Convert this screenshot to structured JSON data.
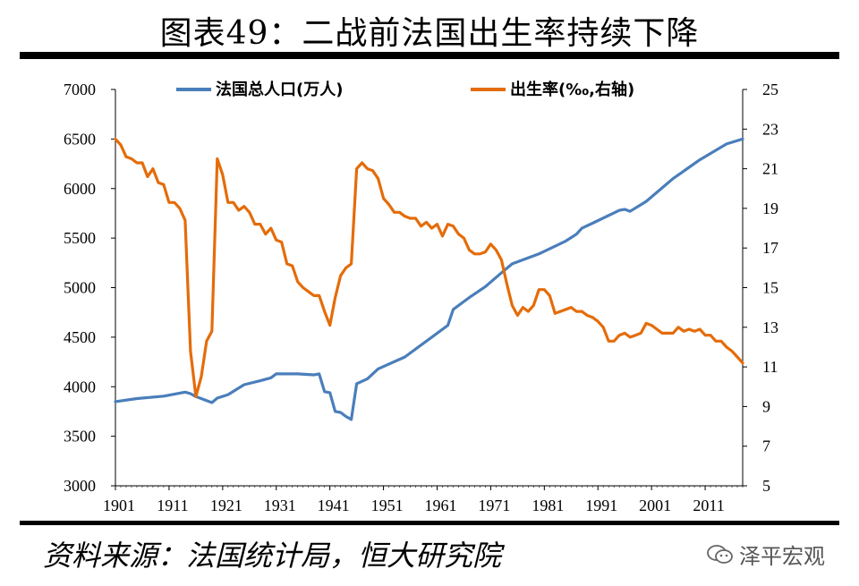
{
  "title": "图表49：二战前法国出生率持续下降",
  "source": "资料来源：法国统计局，恒大研究院",
  "brand": "泽平宏观",
  "chart_data": {
    "type": "line",
    "title": "图表49：二战前法国出生率持续下降",
    "x_ticks": [
      "1901",
      "1911",
      "1921",
      "1931",
      "1941",
      "1951",
      "1961",
      "1971",
      "1981",
      "1991",
      "2001",
      "2011"
    ],
    "x_range": [
      1901,
      2018
    ],
    "y_left": {
      "range": [
        3000,
        7000
      ],
      "ticks": [
        "3000",
        "3500",
        "4000",
        "4500",
        "5000",
        "5500",
        "6000",
        "6500",
        "7000"
      ],
      "label": "法国总人口(万人)"
    },
    "y_right": {
      "range": [
        5,
        25
      ],
      "ticks": [
        "5",
        "7",
        "9",
        "11",
        "13",
        "15",
        "17",
        "19",
        "21",
        "23",
        "25"
      ],
      "label": "出生率(‰,右轴)"
    },
    "series": [
      {
        "name": "法国总人口(万人)",
        "axis": "left",
        "color": "#4a7ebb",
        "points": [
          [
            1901,
            3850
          ],
          [
            1905,
            3880
          ],
          [
            1910,
            3905
          ],
          [
            1914,
            3945
          ],
          [
            1915,
            3930
          ],
          [
            1916,
            3900
          ],
          [
            1917,
            3880
          ],
          [
            1918,
            3860
          ],
          [
            1919,
            3840
          ],
          [
            1920,
            3885
          ],
          [
            1922,
            3920
          ],
          [
            1925,
            4020
          ],
          [
            1928,
            4060
          ],
          [
            1930,
            4090
          ],
          [
            1931,
            4130
          ],
          [
            1935,
            4130
          ],
          [
            1938,
            4120
          ],
          [
            1939,
            4130
          ],
          [
            1940,
            3950
          ],
          [
            1941,
            3940
          ],
          [
            1942,
            3750
          ],
          [
            1943,
            3740
          ],
          [
            1944,
            3700
          ],
          [
            1945,
            3670
          ],
          [
            1946,
            4030
          ],
          [
            1948,
            4080
          ],
          [
            1950,
            4180
          ],
          [
            1955,
            4300
          ],
          [
            1960,
            4500
          ],
          [
            1963,
            4620
          ],
          [
            1964,
            4780
          ],
          [
            1967,
            4900
          ],
          [
            1970,
            5010
          ],
          [
            1973,
            5150
          ],
          [
            1975,
            5240
          ],
          [
            1980,
            5340
          ],
          [
            1985,
            5470
          ],
          [
            1987,
            5540
          ],
          [
            1988,
            5600
          ],
          [
            1990,
            5650
          ],
          [
            1995,
            5780
          ],
          [
            1996,
            5790
          ],
          [
            1997,
            5770
          ],
          [
            2000,
            5870
          ],
          [
            2005,
            6100
          ],
          [
            2010,
            6290
          ],
          [
            2015,
            6450
          ],
          [
            2018,
            6500
          ]
        ]
      },
      {
        "name": "出生率(‰,右轴)",
        "axis": "right",
        "color": "#e46c0a",
        "points": [
          [
            1901,
            22.5
          ],
          [
            1902,
            22.2
          ],
          [
            1903,
            21.6
          ],
          [
            1904,
            21.5
          ],
          [
            1905,
            21.3
          ],
          [
            1906,
            21.3
          ],
          [
            1907,
            20.6
          ],
          [
            1908,
            21.0
          ],
          [
            1909,
            20.3
          ],
          [
            1910,
            20.2
          ],
          [
            1911,
            19.3
          ],
          [
            1912,
            19.3
          ],
          [
            1913,
            19.0
          ],
          [
            1914,
            18.4
          ],
          [
            1915,
            11.8
          ],
          [
            1916,
            9.5
          ],
          [
            1917,
            10.5
          ],
          [
            1918,
            12.3
          ],
          [
            1919,
            12.8
          ],
          [
            1920,
            21.5
          ],
          [
            1921,
            20.7
          ],
          [
            1922,
            19.3
          ],
          [
            1923,
            19.3
          ],
          [
            1924,
            18.9
          ],
          [
            1925,
            19.1
          ],
          [
            1926,
            18.8
          ],
          [
            1927,
            18.2
          ],
          [
            1928,
            18.2
          ],
          [
            1929,
            17.7
          ],
          [
            1930,
            18.0
          ],
          [
            1931,
            17.4
          ],
          [
            1932,
            17.3
          ],
          [
            1933,
            16.2
          ],
          [
            1934,
            16.1
          ],
          [
            1935,
            15.3
          ],
          [
            1936,
            15.0
          ],
          [
            1937,
            14.8
          ],
          [
            1938,
            14.6
          ],
          [
            1939,
            14.6
          ],
          [
            1940,
            13.8
          ],
          [
            1941,
            13.1
          ],
          [
            1942,
            14.5
          ],
          [
            1943,
            15.6
          ],
          [
            1944,
            16.0
          ],
          [
            1945,
            16.2
          ],
          [
            1946,
            21.0
          ],
          [
            1947,
            21.3
          ],
          [
            1948,
            21.0
          ],
          [
            1949,
            20.9
          ],
          [
            1950,
            20.5
          ],
          [
            1951,
            19.5
          ],
          [
            1952,
            19.2
          ],
          [
            1953,
            18.8
          ],
          [
            1954,
            18.8
          ],
          [
            1955,
            18.6
          ],
          [
            1956,
            18.5
          ],
          [
            1957,
            18.5
          ],
          [
            1958,
            18.1
          ],
          [
            1959,
            18.3
          ],
          [
            1960,
            18.0
          ],
          [
            1961,
            18.2
          ],
          [
            1962,
            17.6
          ],
          [
            1963,
            18.2
          ],
          [
            1964,
            18.1
          ],
          [
            1965,
            17.7
          ],
          [
            1966,
            17.5
          ],
          [
            1967,
            16.9
          ],
          [
            1968,
            16.7
          ],
          [
            1969,
            16.7
          ],
          [
            1970,
            16.8
          ],
          [
            1971,
            17.2
          ],
          [
            1972,
            16.9
          ],
          [
            1973,
            16.4
          ],
          [
            1974,
            15.2
          ],
          [
            1975,
            14.1
          ],
          [
            1976,
            13.6
          ],
          [
            1977,
            14.0
          ],
          [
            1978,
            13.8
          ],
          [
            1979,
            14.1
          ],
          [
            1980,
            14.9
          ],
          [
            1981,
            14.9
          ],
          [
            1982,
            14.6
          ],
          [
            1983,
            13.7
          ],
          [
            1984,
            13.8
          ],
          [
            1985,
            13.9
          ],
          [
            1986,
            14.0
          ],
          [
            1987,
            13.8
          ],
          [
            1988,
            13.8
          ],
          [
            1989,
            13.6
          ],
          [
            1990,
            13.5
          ],
          [
            1991,
            13.3
          ],
          [
            1992,
            13.0
          ],
          [
            1993,
            12.3
          ],
          [
            1994,
            12.3
          ],
          [
            1995,
            12.6
          ],
          [
            1996,
            12.7
          ],
          [
            1997,
            12.5
          ],
          [
            1998,
            12.6
          ],
          [
            1999,
            12.7
          ],
          [
            2000,
            13.2
          ],
          [
            2001,
            13.1
          ],
          [
            2002,
            12.9
          ],
          [
            2003,
            12.7
          ],
          [
            2004,
            12.7
          ],
          [
            2005,
            12.7
          ],
          [
            2006,
            13.0
          ],
          [
            2007,
            12.8
          ],
          [
            2008,
            12.9
          ],
          [
            2009,
            12.8
          ],
          [
            2010,
            12.9
          ],
          [
            2011,
            12.6
          ],
          [
            2012,
            12.6
          ],
          [
            2013,
            12.3
          ],
          [
            2014,
            12.3
          ],
          [
            2015,
            12.0
          ],
          [
            2016,
            11.8
          ],
          [
            2017,
            11.5
          ],
          [
            2018,
            11.2
          ]
        ]
      }
    ],
    "legend_placement": "top"
  }
}
